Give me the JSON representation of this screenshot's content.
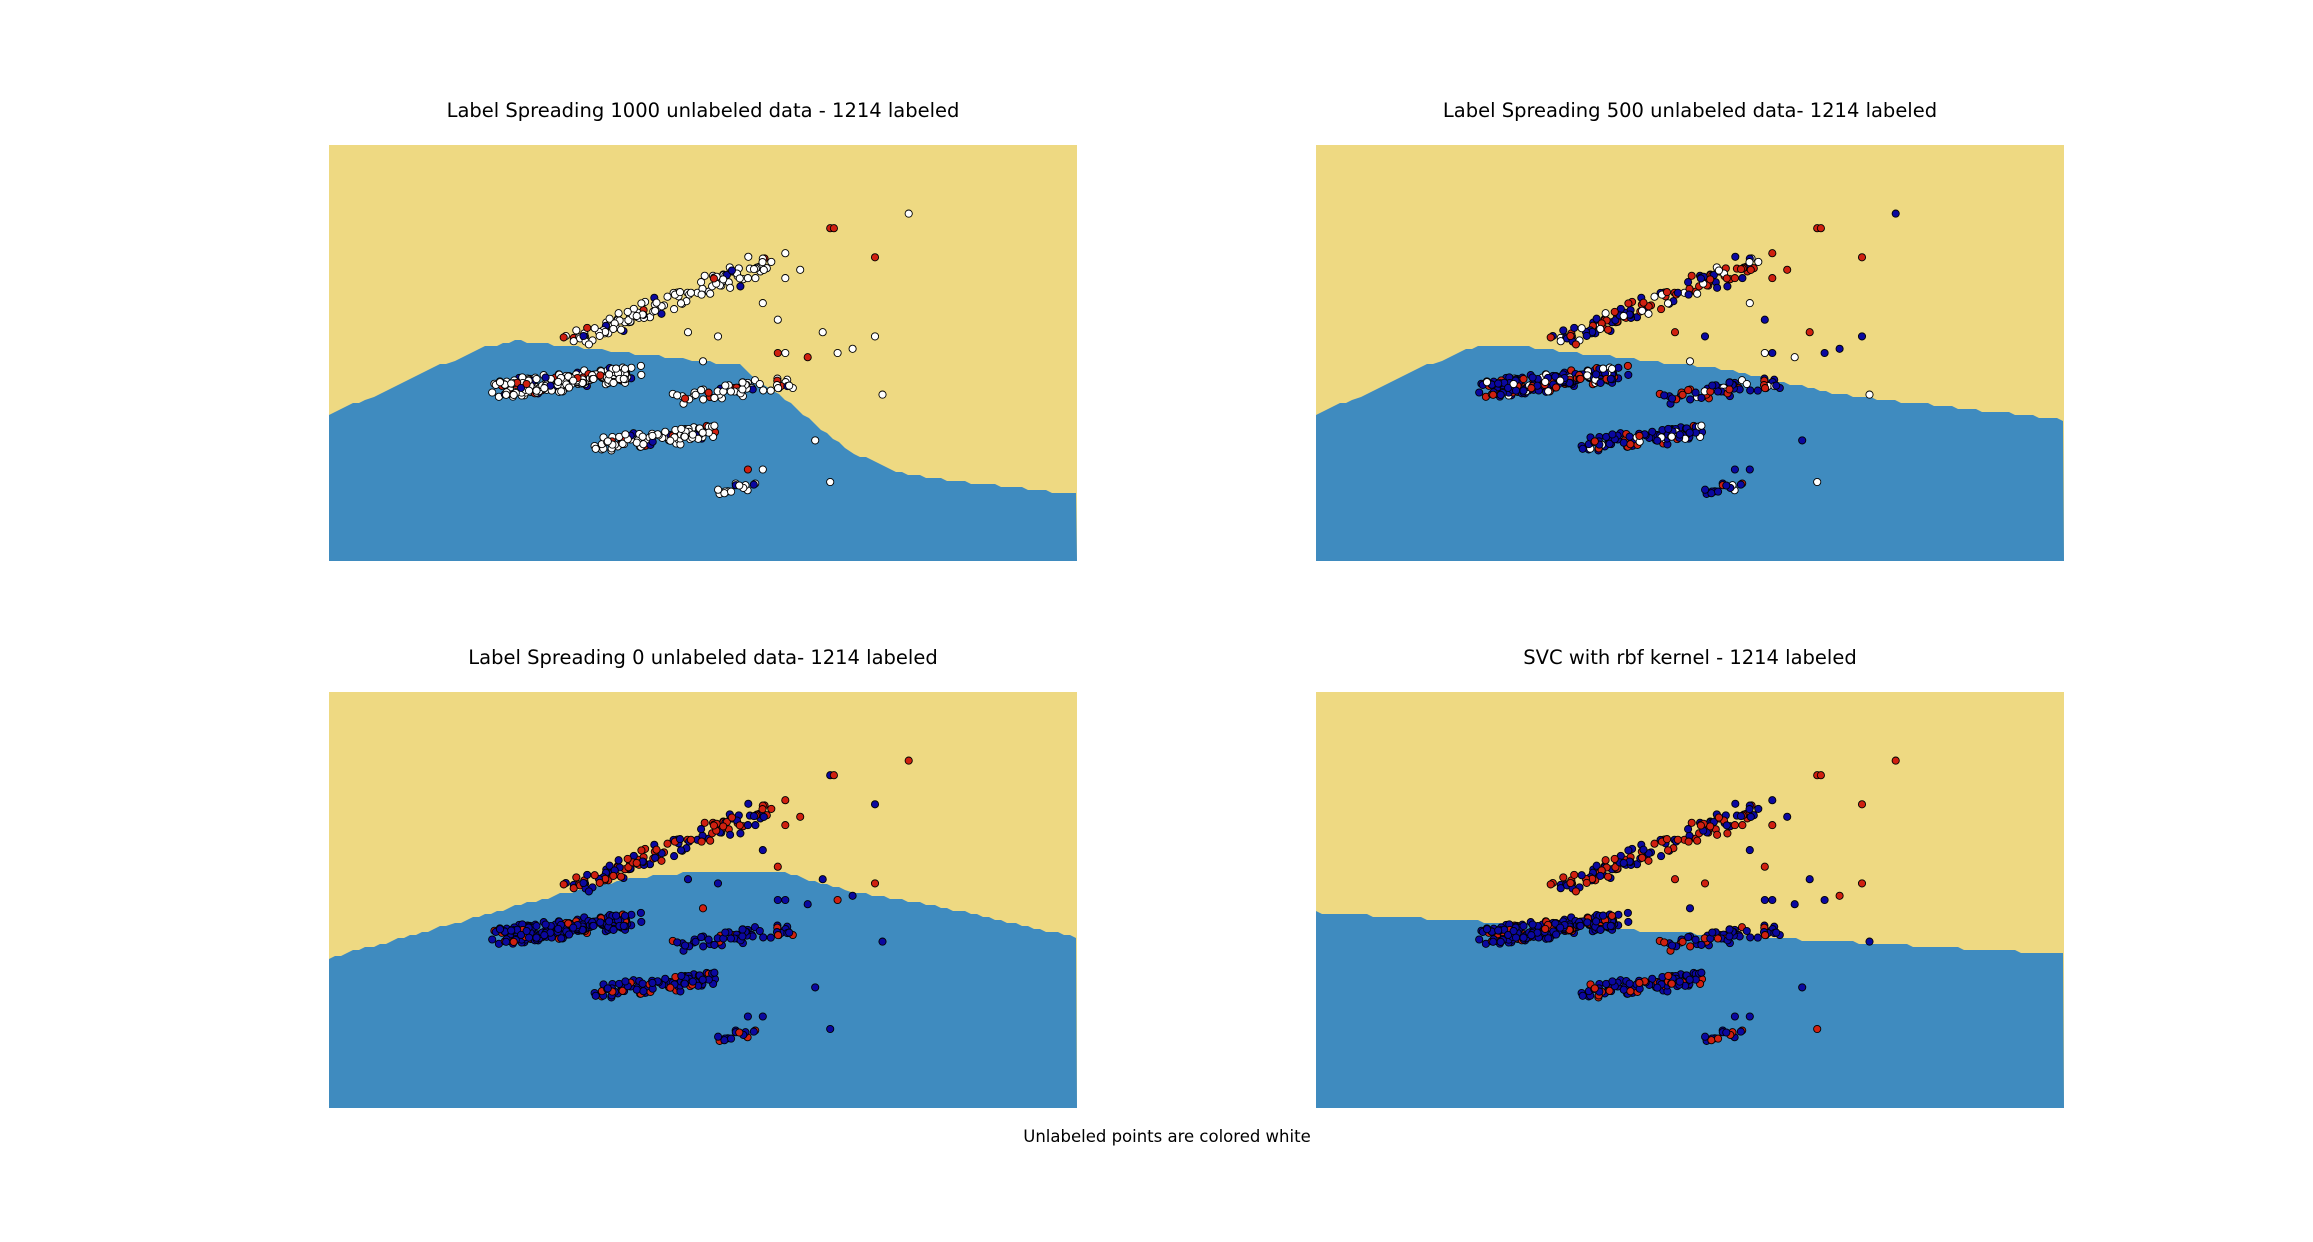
{
  "figure": {
    "caption": "Unlabeled points are colored white"
  },
  "colors": {
    "region_class_0": "#eed982",
    "region_class_1": "#3f8bbf",
    "point_class_0": "#d02010",
    "point_class_1": "#0b08a0",
    "point_unlabeled": "#ffffff",
    "point_edge": "#000000"
  },
  "chart_data": [
    {
      "type": "scatter",
      "title": "Label Spreading 1000 unlabeled data - 1214 labeled",
      "axes_visible": false,
      "legend": false,
      "grid": false,
      "boundary": {
        "x": [
          0,
          0.05,
          0.1,
          0.15,
          0.2,
          0.25,
          0.3,
          0.35,
          0.4,
          0.45,
          0.5,
          0.55,
          0.6,
          0.65,
          0.7,
          0.75,
          0.8,
          0.85,
          0.9,
          0.95,
          1
        ],
        "y": [
          0.35,
          0.39,
          0.43,
          0.47,
          0.51,
          0.53,
          0.52,
          0.51,
          0.5,
          0.49,
          0.48,
          0.47,
          0.4,
          0.33,
          0.26,
          0.22,
          0.2,
          0.19,
          0.18,
          0.17,
          0.16
        ]
      },
      "points_style": "unlabeled_white",
      "clusters_extra": [
        {
          "cx": 0.78,
          "cy": 0.83,
          "label": "unlabeled"
        }
      ]
    },
    {
      "type": "scatter",
      "title": "Label Spreading 500 unlabeled data- 1214 labeled",
      "axes_visible": false,
      "legend": false,
      "grid": false,
      "boundary": {
        "x": [
          0,
          0.05,
          0.1,
          0.15,
          0.2,
          0.25,
          0.3,
          0.35,
          0.4,
          0.45,
          0.5,
          0.55,
          0.6,
          0.65,
          0.7,
          0.75,
          0.8,
          0.85,
          0.9,
          0.95,
          1
        ],
        "y": [
          0.35,
          0.39,
          0.43,
          0.47,
          0.51,
          0.52,
          0.51,
          0.5,
          0.49,
          0.48,
          0.47,
          0.46,
          0.44,
          0.42,
          0.4,
          0.39,
          0.38,
          0.37,
          0.36,
          0.35,
          0.34
        ]
      },
      "points_style": "mixed_some_white",
      "clusters_extra": [
        {
          "cx": 0.78,
          "cy": 0.83,
          "label": "class_1"
        }
      ]
    },
    {
      "type": "scatter",
      "title": "Label Spreading 0 unlabeled data- 1214 labeled",
      "axes_visible": false,
      "legend": false,
      "grid": false,
      "boundary": {
        "x": [
          0,
          0.1,
          0.2,
          0.3,
          0.4,
          0.5,
          0.6,
          0.7,
          0.8,
          0.9,
          1
        ],
        "y": [
          0.36,
          0.41,
          0.46,
          0.51,
          0.55,
          0.57,
          0.57,
          0.52,
          0.49,
          0.45,
          0.41
        ]
      },
      "points_style": "all_labeled",
      "clusters_extra": [
        {
          "cx": 0.78,
          "cy": 0.83,
          "label": "class_0"
        }
      ]
    },
    {
      "type": "scatter",
      "title": "SVC with rbf kernel - 1214 labeled",
      "axes_visible": false,
      "legend": false,
      "grid": false,
      "boundary": {
        "x": [
          0,
          0.1,
          0.2,
          0.3,
          0.4,
          0.5,
          0.6,
          0.7,
          0.8,
          0.9,
          1
        ],
        "y": [
          0.47,
          0.46,
          0.45,
          0.44,
          0.43,
          0.42,
          0.41,
          0.4,
          0.39,
          0.38,
          0.37
        ]
      },
      "points_style": "all_labeled",
      "clusters_extra": [
        {
          "cx": 0.78,
          "cy": 0.83,
          "label": "class_0"
        }
      ]
    }
  ]
}
